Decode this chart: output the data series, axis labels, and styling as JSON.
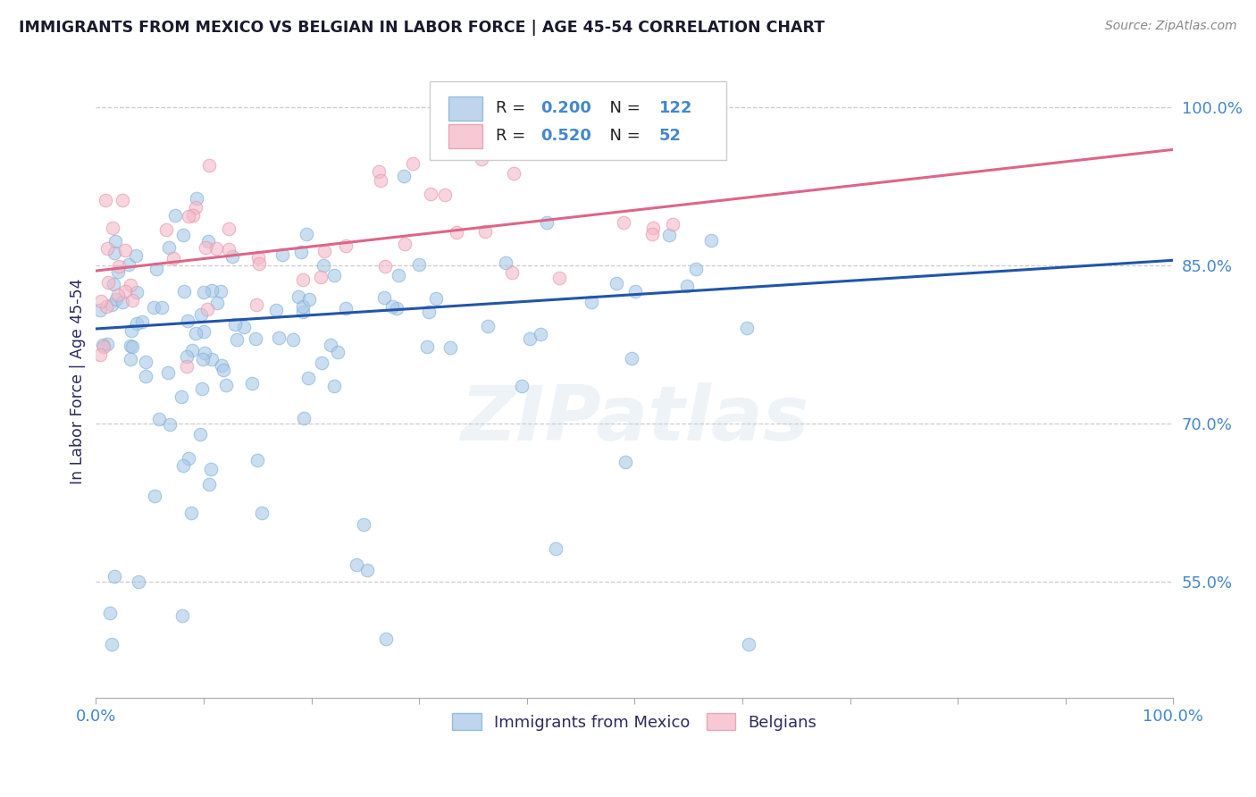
{
  "title": "IMMIGRANTS FROM MEXICO VS BELGIAN IN LABOR FORCE | AGE 45-54 CORRELATION CHART",
  "source": "Source: ZipAtlas.com",
  "ylabel": "In Labor Force | Age 45-54",
  "xlim": [
    0,
    1.0
  ],
  "ylim": [
    0.44,
    1.04
  ],
  "yticks": [
    0.55,
    0.7,
    0.85,
    1.0
  ],
  "ytick_labels": [
    "55.0%",
    "70.0%",
    "85.0%",
    "100.0%"
  ],
  "xticks": [
    0.0,
    0.1,
    0.2,
    0.3,
    0.4,
    0.5,
    0.6,
    0.7,
    0.8,
    0.9,
    1.0
  ],
  "xtick_labels": [
    "0.0%",
    "",
    "",
    "",
    "",
    "",
    "",
    "",
    "",
    "",
    "100.0%"
  ],
  "mexico_R": 0.2,
  "mexico_N": 122,
  "belgian_R": 0.52,
  "belgian_N": 52,
  "mexico_color": "#a8c8e8",
  "mexican_edge_color": "#7bafd4",
  "belgian_color": "#f4b8c8",
  "belgian_edge_color": "#e890a8",
  "mexico_line_color": "#2255aa",
  "belgian_line_color": "#dd6688",
  "legend_label_mexico": "Immigrants from Mexico",
  "legend_label_belgian": "Belgians",
  "background_color": "#ffffff",
  "grid_color": "#cccccc",
  "title_color": "#1a1a2e",
  "source_color": "#888888",
  "axis_label_color": "#2c2c5e",
  "tick_label_color": "#4488cc",
  "watermark_color": "#c8d8e8",
  "mexico_line_start_y": 0.79,
  "mexico_line_end_y": 0.855,
  "belgian_line_start_y": 0.845,
  "belgian_line_end_y": 0.96
}
